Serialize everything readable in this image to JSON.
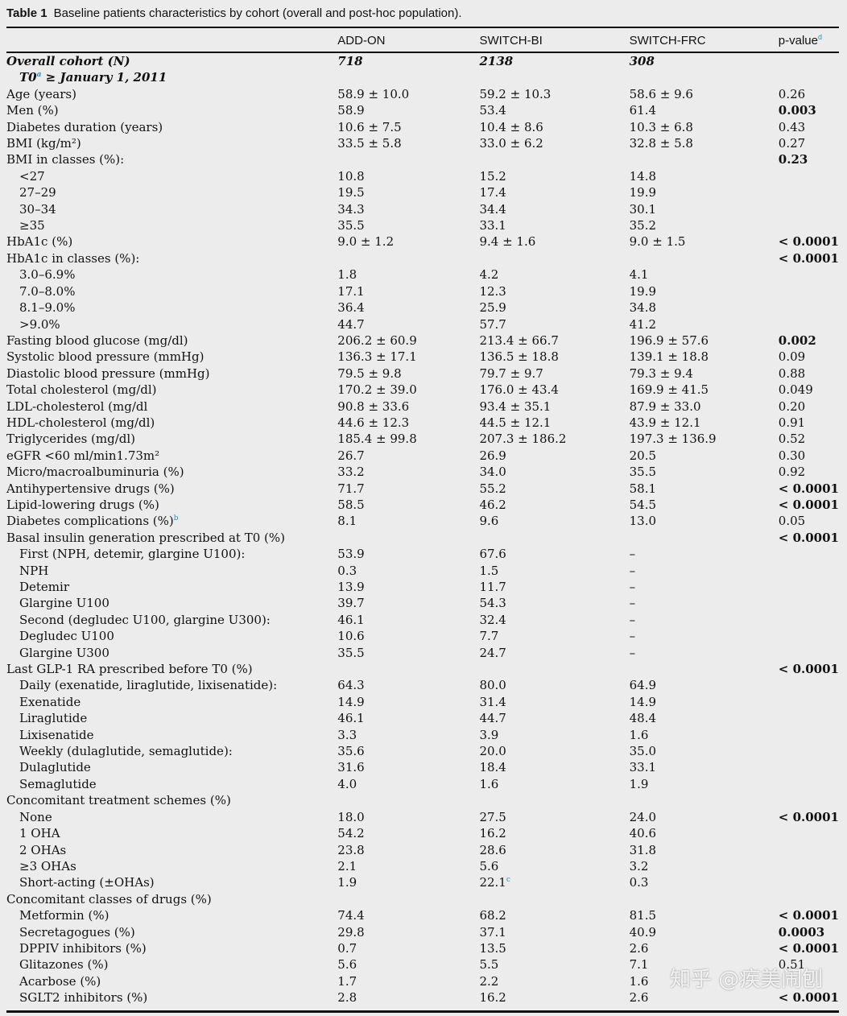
{
  "caption": {
    "label": "Table 1",
    "text": "Baseline patients characteristics by cohort (overall and post-hoc population)."
  },
  "columns": [
    "",
    "ADD-ON",
    "SWITCH-BI",
    "SWITCH-FRC",
    "p-value"
  ],
  "pvalue_footnote": "d",
  "cohort": {
    "label": "Overall cohort (N)",
    "values": [
      "718",
      "2138",
      "308"
    ],
    "t0_label": "T0",
    "t0_sup": "a",
    "t0_rest": " ≥ January 1, 2011"
  },
  "rows": [
    {
      "l": "Age (years)",
      "v": [
        "58.9 ± 10.0",
        "59.2 ± 10.3",
        "58.6 ± 9.6",
        "0.26"
      ]
    },
    {
      "l": "Men (%)",
      "v": [
        "58.9",
        "53.4",
        "61.4",
        "0.003"
      ],
      "b": 1
    },
    {
      "l": "Diabetes duration (years)",
      "v": [
        "10.6 ± 7.5",
        "10.4 ± 8.6",
        "10.3 ± 6.8",
        "0.43"
      ]
    },
    {
      "l": "BMI (kg/m²)",
      "v": [
        "33.5 ± 5.8",
        "33.0 ± 6.2",
        "32.8 ± 5.8",
        "0.27"
      ]
    },
    {
      "l": "BMI in classes (%):",
      "v": [
        "",
        "",
        "",
        "0.23"
      ],
      "b": 1
    },
    {
      "l": "<27",
      "v": [
        "10.8",
        "15.2",
        "14.8",
        ""
      ],
      "i": 1
    },
    {
      "l": "27–29",
      "v": [
        "19.5",
        "17.4",
        "19.9",
        ""
      ],
      "i": 1
    },
    {
      "l": "30–34",
      "v": [
        "34.3",
        "34.4",
        "30.1",
        ""
      ],
      "i": 1
    },
    {
      "l": "≥35",
      "v": [
        "35.5",
        "33.1",
        "35.2",
        ""
      ],
      "i": 1
    },
    {
      "l": "HbA1c (%)",
      "v": [
        "9.0 ± 1.2",
        "9.4 ± 1.6",
        "9.0 ± 1.5",
        "< 0.0001"
      ],
      "b": 1
    },
    {
      "l": "HbA1c in classes (%):",
      "v": [
        "",
        "",
        "",
        "< 0.0001"
      ],
      "b": 1
    },
    {
      "l": "3.0–6.9%",
      "v": [
        "1.8",
        "4.2",
        "4.1",
        ""
      ],
      "i": 1
    },
    {
      "l": "7.0–8.0%",
      "v": [
        "17.1",
        "12.3",
        "19.9",
        ""
      ],
      "i": 1
    },
    {
      "l": "8.1–9.0%",
      "v": [
        "36.4",
        "25.9",
        "34.8",
        ""
      ],
      "i": 1
    },
    {
      "l": ">9.0%",
      "v": [
        "44.7",
        "57.7",
        "41.2",
        ""
      ],
      "i": 1
    },
    {
      "l": "Fasting blood glucose (mg/dl)",
      "v": [
        "206.2 ± 60.9",
        "213.4 ± 66.7",
        "196.9 ± 57.6",
        "0.002"
      ],
      "b": 1
    },
    {
      "l": "Systolic blood pressure (mmHg)",
      "v": [
        "136.3 ± 17.1",
        "136.5 ± 18.8",
        "139.1 ± 18.8",
        "0.09"
      ]
    },
    {
      "l": "Diastolic blood pressure (mmHg)",
      "v": [
        "79.5 ± 9.8",
        "79.7 ± 9.7",
        "79.3 ± 9.4",
        "0.88"
      ]
    },
    {
      "l": "Total cholesterol (mg/dl)",
      "v": [
        "170.2 ± 39.0",
        "176.0 ± 43.4",
        "169.9 ± 41.5",
        "0.049"
      ]
    },
    {
      "l": "LDL-cholesterol (mg/dl",
      "v": [
        "90.8 ± 33.6",
        "93.4 ± 35.1",
        "87.9 ± 33.0",
        "0.20"
      ]
    },
    {
      "l": "HDL-cholesterol (mg/dl)",
      "v": [
        "44.6 ± 12.3",
        "44.5 ± 12.1",
        "43.9 ± 12.1",
        "0.91"
      ]
    },
    {
      "l": "Triglycerides (mg/dl)",
      "v": [
        "185.4 ± 99.8",
        "207.3 ± 186.2",
        "197.3 ± 136.9",
        "0.52"
      ]
    },
    {
      "l": "eGFR <60 ml/min1.73m²",
      "v": [
        "26.7",
        "26.9",
        "20.5",
        "0.30"
      ]
    },
    {
      "l": "Micro/macroalbuminuria (%)",
      "v": [
        "33.2",
        "34.0",
        "35.5",
        "0.92"
      ]
    },
    {
      "l": "Antihypertensive drugs (%)",
      "v": [
        "71.7",
        "55.2",
        "58.1",
        "< 0.0001"
      ],
      "b": 1
    },
    {
      "l": "Lipid-lowering drugs (%)",
      "v": [
        "58.5",
        "46.2",
        "54.5",
        "< 0.0001"
      ],
      "b": 1
    },
    {
      "l": "Diabetes complications (%)",
      "s": "b",
      "v": [
        "8.1",
        "9.6",
        "13.0",
        "0.05"
      ]
    },
    {
      "l": "Basal insulin generation prescribed at T0 (%)",
      "v": [
        "",
        "",
        "",
        "< 0.0001"
      ],
      "b": 1
    },
    {
      "l": "First (NPH, detemir, glargine U100):",
      "v": [
        "53.9",
        "67.6",
        "–",
        ""
      ],
      "i": 1
    },
    {
      "l": "NPH",
      "v": [
        "0.3",
        "1.5",
        "–",
        ""
      ],
      "i": 1
    },
    {
      "l": "Detemir",
      "v": [
        "13.9",
        "11.7",
        "–",
        ""
      ],
      "i": 1
    },
    {
      "l": "Glargine U100",
      "v": [
        "39.7",
        "54.3",
        "–",
        ""
      ],
      "i": 1
    },
    {
      "l": "Second (degludec U100, glargine U300):",
      "v": [
        "46.1",
        "32.4",
        "–",
        ""
      ],
      "i": 1
    },
    {
      "l": "Degludec U100",
      "v": [
        "10.6",
        "7.7",
        "–",
        ""
      ],
      "i": 1
    },
    {
      "l": "Glargine U300",
      "v": [
        "35.5",
        "24.7",
        "–",
        ""
      ],
      "i": 1
    },
    {
      "l": "Last GLP-1 RA prescribed before T0 (%)",
      "v": [
        "",
        "",
        "",
        "< 0.0001"
      ],
      "b": 1
    },
    {
      "l": "Daily (exenatide, liraglutide, lixisenatide):",
      "v": [
        "64.3",
        "80.0",
        "64.9",
        ""
      ],
      "i": 1
    },
    {
      "l": "Exenatide",
      "v": [
        "14.9",
        "31.4",
        "14.9",
        ""
      ],
      "i": 1
    },
    {
      "l": "Liraglutide",
      "v": [
        "46.1",
        "44.7",
        "48.4",
        ""
      ],
      "i": 1
    },
    {
      "l": "Lixisenatide",
      "v": [
        "3.3",
        "3.9",
        "1.6",
        ""
      ],
      "i": 1
    },
    {
      "l": "Weekly (dulaglutide, semaglutide):",
      "v": [
        "35.6",
        "20.0",
        "35.0",
        ""
      ],
      "i": 1
    },
    {
      "l": "Dulaglutide",
      "v": [
        "31.6",
        "18.4",
        "33.1",
        ""
      ],
      "i": 1
    },
    {
      "l": "Semaglutide",
      "v": [
        "4.0",
        "1.6",
        "1.9",
        ""
      ],
      "i": 1
    },
    {
      "l": "Concomitant treatment schemes (%)",
      "v": [
        "",
        "",
        "",
        ""
      ]
    },
    {
      "l": "None",
      "v": [
        "18.0",
        "27.5",
        "24.0",
        "< 0.0001"
      ],
      "i": 1,
      "b": 1
    },
    {
      "l": "1 OHA",
      "v": [
        "54.2",
        "16.2",
        "40.6",
        ""
      ],
      "i": 1
    },
    {
      "l": "2 OHAs",
      "v": [
        "23.8",
        "28.6",
        "31.8",
        ""
      ],
      "i": 1
    },
    {
      "l": "≥3 OHAs",
      "v": [
        "2.1",
        "5.6",
        "3.2",
        ""
      ],
      "i": 1
    },
    {
      "l": "Short-acting (±OHAs)",
      "v": [
        "1.9",
        "22.1",
        "0.3",
        ""
      ],
      "i": 1,
      "vs": "c"
    },
    {
      "l": "Concomitant classes of drugs (%)",
      "v": [
        "",
        "",
        "",
        ""
      ]
    },
    {
      "l": "Metformin (%)",
      "v": [
        "74.4",
        "68.2",
        "81.5",
        "< 0.0001"
      ],
      "i": 1,
      "b": 1
    },
    {
      "l": "Secretagogues (%)",
      "v": [
        "29.8",
        "37.1",
        "40.9",
        "0.0003"
      ],
      "i": 1,
      "b": 1
    },
    {
      "l": "DPPIV inhibitors (%)",
      "v": [
        "0.7",
        "13.5",
        "2.6",
        "< 0.0001"
      ],
      "i": 1,
      "b": 1
    },
    {
      "l": "Glitazones (%)",
      "v": [
        "5.6",
        "5.5",
        "7.1",
        "0.51"
      ],
      "i": 1
    },
    {
      "l": "Acarbose (%)",
      "v": [
        "1.7",
        "2.2",
        "1.6",
        ""
      ],
      "i": 1
    },
    {
      "l": "SGLT2 inhibitors (%)",
      "v": [
        "2.8",
        "16.2",
        "2.6",
        "< 0.0001"
      ],
      "i": 1,
      "b": 1
    }
  ],
  "watermark": "知乎 @疾美闹刨"
}
